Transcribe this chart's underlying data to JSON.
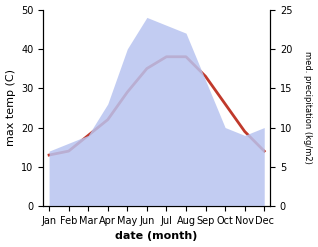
{
  "months": [
    "Jan",
    "Feb",
    "Mar",
    "Apr",
    "May",
    "Jun",
    "Jul",
    "Aug",
    "Sep",
    "Oct",
    "Nov",
    "Dec"
  ],
  "temp": [
    13,
    14,
    18,
    22,
    29,
    35,
    38,
    38,
    33,
    26,
    19,
    14
  ],
  "precip": [
    7,
    8,
    9,
    13,
    20,
    24,
    23,
    22,
    16,
    10,
    9,
    10
  ],
  "temp_color": "#c0392b",
  "area_facecolor": "#b8c4f0",
  "area_alpha": 0.85,
  "background": "#ffffff",
  "ylabel_left": "max temp (C)",
  "ylabel_right": "med. precipitation (kg/m2)",
  "xlabel": "date (month)",
  "ylim_left": [
    0,
    50
  ],
  "ylim_right": [
    0,
    25
  ],
  "yticks_left": [
    0,
    10,
    20,
    30,
    40,
    50
  ],
  "yticks_right": [
    0,
    5,
    10,
    15,
    20,
    25
  ],
  "label_fontsize": 8,
  "tick_fontsize": 7,
  "linewidth": 2.0
}
